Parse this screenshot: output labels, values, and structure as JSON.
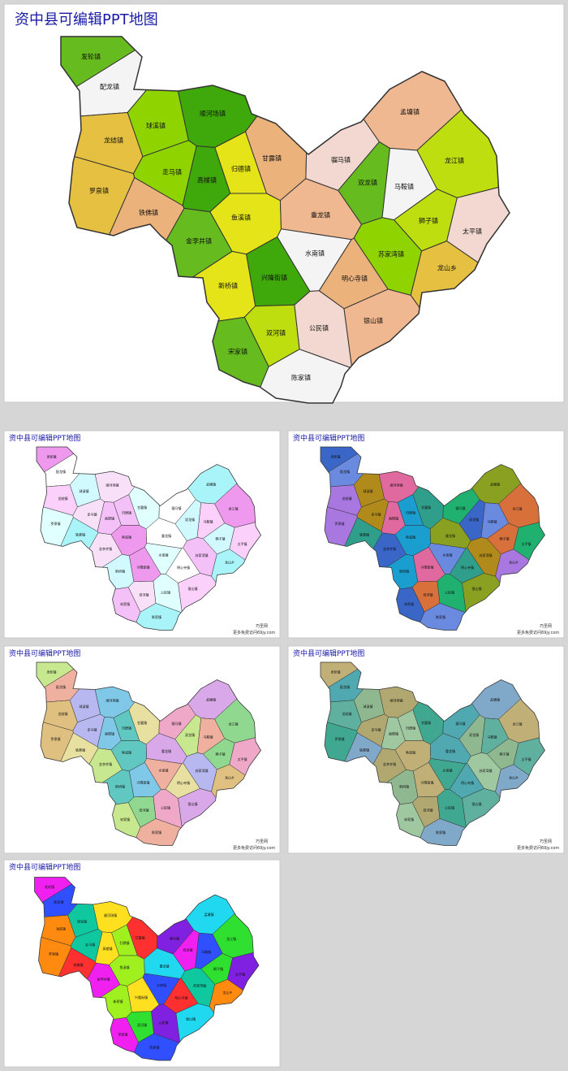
{
  "title": "资中县可编辑PPT地图",
  "towns": [
    "发轮镇",
    "配龙镇",
    "球溪镇",
    "龙结镇",
    "顺河场镇",
    "甘露镇",
    "归德镇",
    "孟塘镇",
    "龙江镇",
    "骝马镇",
    "双龙镇",
    "马鞍镇",
    "走马镇",
    "罗泉镇",
    "高楼镇",
    "铁佛镇",
    "鱼溪镇",
    "重龙镇",
    "狮子镇",
    "太平镇",
    "金李井镇",
    "水南镇",
    "苏家湾镇",
    "龙山乡",
    "兴隆街镇",
    "明心寺镇",
    "新桥镇",
    "银山镇",
    "双河镇",
    "公民镇",
    "宋家镇",
    "陈家镇"
  ],
  "footer": {
    "brand": "巧圣网",
    "note": "更多免费访问69jy.com"
  }
}
